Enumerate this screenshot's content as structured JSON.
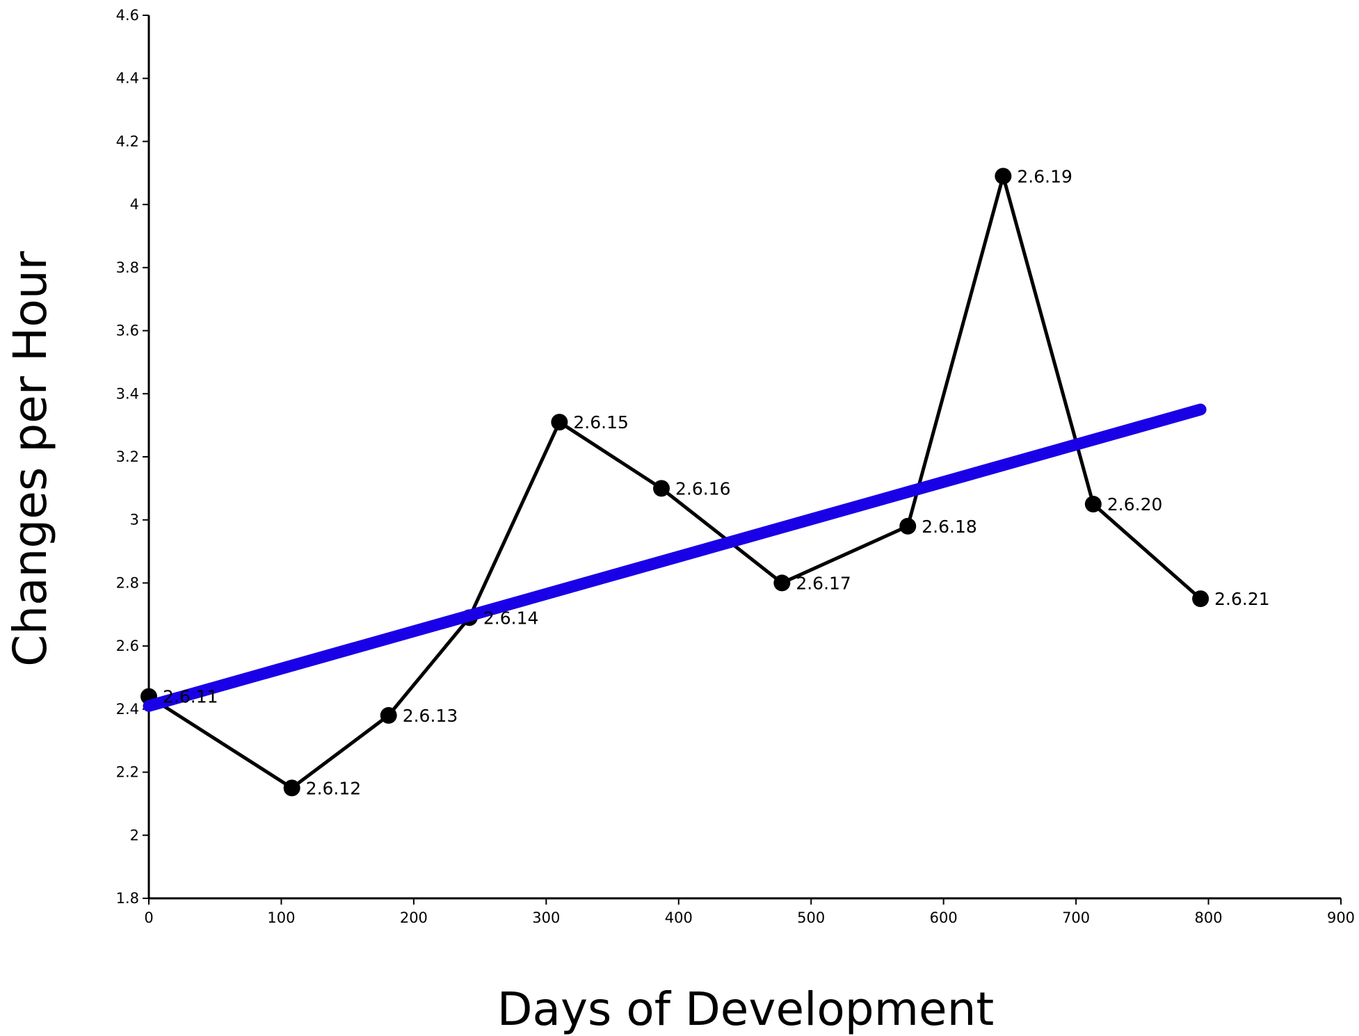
{
  "chart_data": {
    "type": "line",
    "title": "",
    "xlabel": "Days of Development",
    "ylabel": "Changes per Hour",
    "xlim": [
      0,
      900
    ],
    "ylim": [
      1.8,
      4.6
    ],
    "grid": false,
    "legend": "none",
    "xticks": [
      "0",
      "100",
      "200",
      "300",
      "400",
      "500",
      "600",
      "700",
      "800",
      "900"
    ],
    "yticks": [
      "1.8",
      "2",
      "2.2",
      "2.4",
      "2.6",
      "2.8",
      "3",
      "3.2",
      "3.4",
      "3.6",
      "3.8",
      "4",
      "4.2",
      "4.4",
      "4.6"
    ],
    "series": [
      {
        "color": "#000000",
        "points": [
          {
            "x": 0,
            "y": 2.44,
            "label": "2.6.11"
          },
          {
            "x": 108,
            "y": 2.15,
            "label": "2.6.12"
          },
          {
            "x": 181,
            "y": 2.38,
            "label": "2.6.13"
          },
          {
            "x": 242,
            "y": 2.69,
            "label": "2.6.14"
          },
          {
            "x": 310,
            "y": 3.31,
            "label": "2.6.15"
          },
          {
            "x": 387,
            "y": 3.1,
            "label": "2.6.16"
          },
          {
            "x": 478,
            "y": 2.8,
            "label": "2.6.17"
          },
          {
            "x": 573,
            "y": 2.98,
            "label": "2.6.18"
          },
          {
            "x": 645,
            "y": 4.09,
            "label": "2.6.19"
          },
          {
            "x": 713,
            "y": 3.05,
            "label": "2.6.20"
          },
          {
            "x": 794,
            "y": 2.75,
            "label": "2.6.21"
          }
        ]
      }
    ],
    "trendline": {
      "color": "#1a00e6",
      "from": {
        "x": 0,
        "y": 2.41
      },
      "to": {
        "x": 794,
        "y": 3.35
      }
    }
  }
}
